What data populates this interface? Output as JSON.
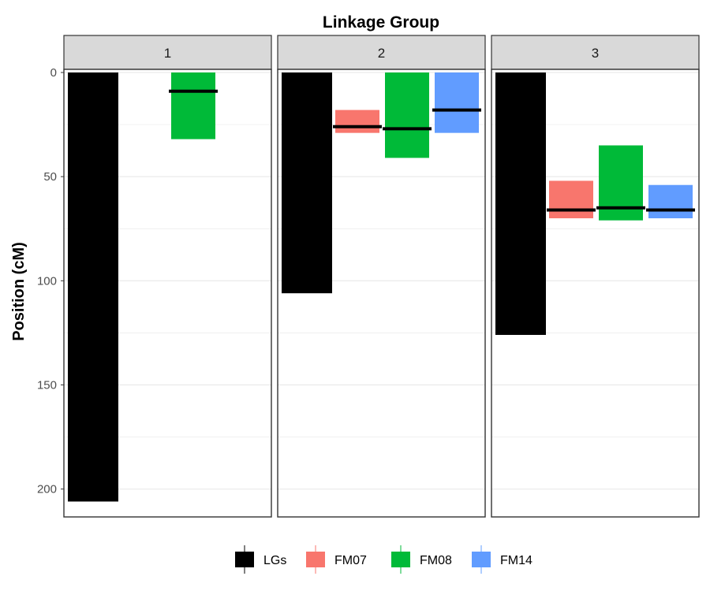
{
  "chart_data": {
    "type": "bar",
    "title": "Linkage Group",
    "xlabel": "",
    "ylabel": "Position (cM)",
    "y_reversed": true,
    "ylim": [
      0,
      213
    ],
    "y_ticks": [
      0,
      50,
      100,
      150,
      200
    ],
    "grid": true,
    "legend_position": "bottom",
    "series": [
      {
        "name": "LGs",
        "color": "#000000"
      },
      {
        "name": "FM07",
        "color": "#F8766D"
      },
      {
        "name": "FM08",
        "color": "#00BA38"
      },
      {
        "name": "FM14",
        "color": "#619CFF"
      }
    ],
    "facets": [
      {
        "label": "1",
        "bars": [
          {
            "series": "LGs",
            "start": 0,
            "end": 206
          },
          {
            "series": "FM08",
            "start": 0,
            "end": 32,
            "marker": 9
          }
        ]
      },
      {
        "label": "2",
        "bars": [
          {
            "series": "LGs",
            "start": 0,
            "end": 106
          },
          {
            "series": "FM07",
            "start": 18,
            "end": 29,
            "marker": 26
          },
          {
            "series": "FM08",
            "start": 0,
            "end": 41,
            "marker": 27
          },
          {
            "series": "FM14",
            "start": 0,
            "end": 29,
            "marker": 18
          }
        ]
      },
      {
        "label": "3",
        "bars": [
          {
            "series": "LGs",
            "start": 0,
            "end": 126
          },
          {
            "series": "FM07",
            "start": 52,
            "end": 70,
            "marker": 66
          },
          {
            "series": "FM08",
            "start": 35,
            "end": 71,
            "marker": 65
          },
          {
            "series": "FM14",
            "start": 54,
            "end": 70,
            "marker": 66
          }
        ]
      }
    ]
  }
}
